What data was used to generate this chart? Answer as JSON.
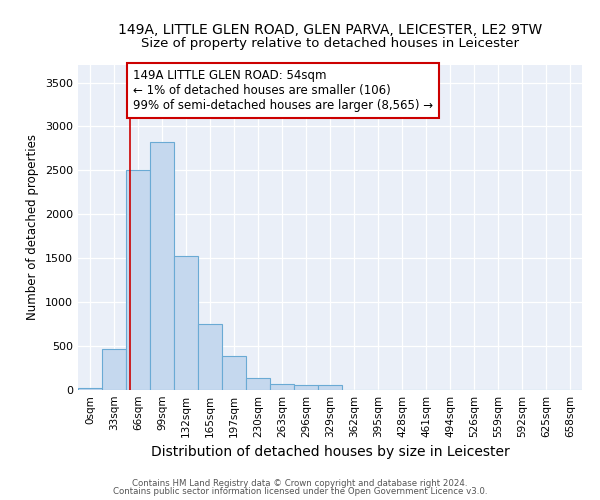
{
  "title1": "149A, LITTLE GLEN ROAD, GLEN PARVA, LEICESTER, LE2 9TW",
  "title2": "Size of property relative to detached houses in Leicester",
  "xlabel": "Distribution of detached houses by size in Leicester",
  "ylabel": "Number of detached properties",
  "bar_color": "#c5d8ee",
  "bar_edge_color": "#6aaad4",
  "bins": [
    "0sqm",
    "33sqm",
    "66sqm",
    "99sqm",
    "132sqm",
    "165sqm",
    "197sqm",
    "230sqm",
    "263sqm",
    "296sqm",
    "329sqm",
    "362sqm",
    "395sqm",
    "428sqm",
    "461sqm",
    "494sqm",
    "526sqm",
    "559sqm",
    "592sqm",
    "625sqm",
    "658sqm"
  ],
  "values": [
    20,
    470,
    2510,
    2820,
    1520,
    750,
    390,
    140,
    70,
    55,
    55,
    0,
    0,
    0,
    0,
    0,
    0,
    0,
    0,
    0,
    0
  ],
  "ylim": [
    0,
    3700
  ],
  "yticks": [
    0,
    500,
    1000,
    1500,
    2000,
    2500,
    3000,
    3500
  ],
  "property_line_x": 1.65,
  "annotation_line1": "149A LITTLE GLEN ROAD: 54sqm",
  "annotation_line2": "← 1% of detached houses are smaller (106)",
  "annotation_line3": "99% of semi-detached houses are larger (8,565) →",
  "annotation_box_color": "#ffffff",
  "annotation_box_edge": "#cc0000",
  "footer1": "Contains HM Land Registry data © Crown copyright and database right 2024.",
  "footer2": "Contains public sector information licensed under the Open Government Licence v3.0.",
  "bg_color": "#eaeff8",
  "title_fontsize": 10,
  "subtitle_fontsize": 9.5,
  "xlabel_fontsize": 10,
  "ylabel_fontsize": 8.5,
  "tick_fontsize": 8,
  "ann_fontsize": 8.5
}
